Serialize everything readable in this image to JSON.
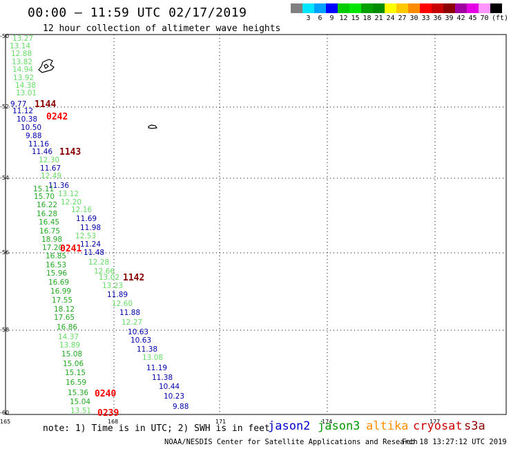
{
  "header": {
    "title": "00:00 – 11:59 UTC 02/17/2019",
    "subtitle": "12 hour collection of altimeter wave heights"
  },
  "color_scale": {
    "unit": "(ft)",
    "entries": [
      {
        "label": "",
        "color": "#808080"
      },
      {
        "label": "3",
        "color": "#00e6ff"
      },
      {
        "label": "6",
        "color": "#00a0ff"
      },
      {
        "label": "9",
        "color": "#0000ff"
      },
      {
        "label": "12",
        "color": "#00cc00"
      },
      {
        "label": "15",
        "color": "#00e600"
      },
      {
        "label": "18",
        "color": "#00a000"
      },
      {
        "label": "21",
        "color": "#008c00"
      },
      {
        "label": "24",
        "color": "#ffff00"
      },
      {
        "label": "27",
        "color": "#ffc800"
      },
      {
        "label": "30",
        "color": "#ff8c00"
      },
      {
        "label": "33",
        "color": "#ff0000"
      },
      {
        "label": "36",
        "color": "#c80000"
      },
      {
        "label": "39",
        "color": "#8c0000"
      },
      {
        "label": "42",
        "color": "#a000a0"
      },
      {
        "label": "45",
        "color": "#e600e6"
      },
      {
        "label": "70",
        "color": "#ff96ff"
      },
      {
        "label": "",
        "color": "#000000"
      }
    ]
  },
  "axes": {
    "lat_labels": [
      "-50",
      "-52",
      "-54",
      "-56",
      "-58",
      "-60"
    ],
    "lon_labels": [
      "165",
      "168",
      "171",
      "174",
      "177"
    ]
  },
  "time_labels": [
    {
      "text": "1144",
      "color": "#8b0000"
    },
    {
      "text": "0242",
      "color": "#ff0000"
    },
    {
      "text": "1143",
      "color": "#8b0000"
    },
    {
      "text": "0241",
      "color": "#ff0000"
    },
    {
      "text": "1142",
      "color": "#8b0000"
    },
    {
      "text": "0240",
      "color": "#ff0000"
    },
    {
      "text": "0239",
      "color": "#ff0000"
    }
  ],
  "wave_heights": [
    {
      "text": "13.27",
      "color": "#66dd66"
    },
    {
      "text": "13.14",
      "color": "#66dd66"
    },
    {
      "text": "12.88",
      "color": "#66dd66"
    },
    {
      "text": "13.82",
      "color": "#66dd66"
    },
    {
      "text": "14.94",
      "color": "#66dd66"
    },
    {
      "text": "13.92",
      "color": "#66dd66"
    },
    {
      "text": "14.38",
      "color": "#66dd66"
    },
    {
      "text": "13.01",
      "color": "#66dd66"
    },
    {
      "text": "9.77",
      "color": "#0000aa"
    },
    {
      "text": "11.12",
      "color": "#0000aa"
    },
    {
      "text": "10.38",
      "color": "#0000aa"
    },
    {
      "text": "10.50",
      "color": "#0000aa"
    },
    {
      "text": "9.88",
      "color": "#0000aa"
    },
    {
      "text": "11.16",
      "color": "#0000aa"
    },
    {
      "text": "11.46",
      "color": "#0000aa"
    },
    {
      "text": "12.30",
      "color": "#66dd66"
    },
    {
      "text": "11.67",
      "color": "#0000aa"
    },
    {
      "text": "12.49",
      "color": "#66dd66"
    },
    {
      "text": "11.36",
      "color": "#0000aa"
    },
    {
      "text": "15.11",
      "color": "#22aa22"
    },
    {
      "text": "13.12",
      "color": "#66dd66"
    },
    {
      "text": "15.70",
      "color": "#22aa22"
    },
    {
      "text": "12.20",
      "color": "#66dd66"
    },
    {
      "text": "16.22",
      "color": "#22aa22"
    },
    {
      "text": "12.16",
      "color": "#66dd66"
    },
    {
      "text": "16.28",
      "color": "#22aa22"
    },
    {
      "text": "11.69",
      "color": "#0000aa"
    },
    {
      "text": "16.45",
      "color": "#22aa22"
    },
    {
      "text": "11.98",
      "color": "#0000aa"
    },
    {
      "text": "16.75",
      "color": "#22aa22"
    },
    {
      "text": "12.53",
      "color": "#66dd66"
    },
    {
      "text": "18.98",
      "color": "#22aa22"
    },
    {
      "text": "11.24",
      "color": "#0000aa"
    },
    {
      "text": "17.20",
      "color": "#22aa22"
    },
    {
      "text": "11.48",
      "color": "#0000aa"
    },
    {
      "text": "16.85",
      "color": "#22aa22"
    },
    {
      "text": "12.28",
      "color": "#66dd66"
    },
    {
      "text": "16.53",
      "color": "#22aa22"
    },
    {
      "text": "12.66",
      "color": "#66dd66"
    },
    {
      "text": "15.96",
      "color": "#22aa22"
    },
    {
      "text": "13.02",
      "color": "#66dd66"
    },
    {
      "text": "16.69",
      "color": "#22aa22"
    },
    {
      "text": "13.23",
      "color": "#66dd66"
    },
    {
      "text": "16.99",
      "color": "#22aa22"
    },
    {
      "text": "11.89",
      "color": "#0000aa"
    },
    {
      "text": "17.55",
      "color": "#22aa22"
    },
    {
      "text": "12.60",
      "color": "#66dd66"
    },
    {
      "text": "18.12",
      "color": "#22aa22"
    },
    {
      "text": "11.88",
      "color": "#0000aa"
    },
    {
      "text": "17.65",
      "color": "#22aa22"
    },
    {
      "text": "12.27",
      "color": "#66dd66"
    },
    {
      "text": "16.86",
      "color": "#22aa22"
    },
    {
      "text": "10.63",
      "color": "#0000aa"
    },
    {
      "text": "14.37",
      "color": "#66dd66"
    },
    {
      "text": "10.63",
      "color": "#0000aa"
    },
    {
      "text": "13.89",
      "color": "#66dd66"
    },
    {
      "text": "11.38",
      "color": "#0000aa"
    },
    {
      "text": "15.08",
      "color": "#22aa22"
    },
    {
      "text": "13.08",
      "color": "#66dd66"
    },
    {
      "text": "15.06",
      "color": "#22aa22"
    },
    {
      "text": "11.19",
      "color": "#0000aa"
    },
    {
      "text": "15.15",
      "color": "#22aa22"
    },
    {
      "text": "11.38",
      "color": "#0000aa"
    },
    {
      "text": "16.59",
      "color": "#22aa22"
    },
    {
      "text": "10.44",
      "color": "#0000aa"
    },
    {
      "text": "15.36",
      "color": "#22aa22"
    },
    {
      "text": "10.23",
      "color": "#0000aa"
    },
    {
      "text": "15.04",
      "color": "#22aa22"
    },
    {
      "text": "9.88",
      "color": "#0000aa"
    },
    {
      "text": "13.51",
      "color": "#66dd66"
    }
  ],
  "footer": {
    "note": "note:  1) Time is in UTC; 2) SWH is in feet",
    "legend": [
      {
        "name": "jason2",
        "color": "#0000cc"
      },
      {
        "name": "jason3",
        "color": "#009900"
      },
      {
        "name": "altika",
        "color": "#ff8c00"
      },
      {
        "name": "cryosat",
        "color": "#cc0000"
      },
      {
        "name": "s3a",
        "color": "#8b0000"
      }
    ],
    "credit": "NOAA/NESDIS Center for Satellite Applications and Research",
    "timestamp": "Feb 18 13:27:12 UTC 2019"
  }
}
